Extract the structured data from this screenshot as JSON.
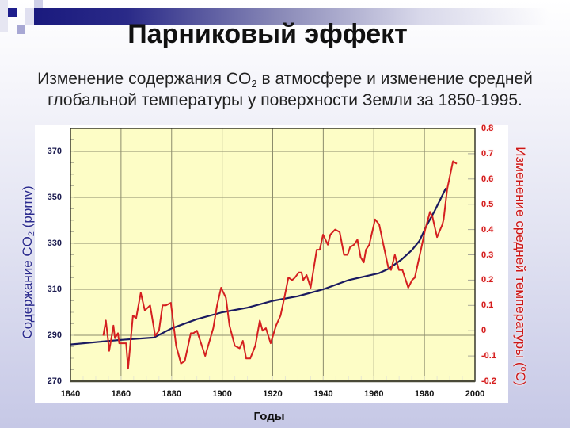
{
  "slide": {
    "title": "Парниковый эффект",
    "subtitle_line1_pre": "Изменение содержания CO",
    "subtitle_line1_sub": "2",
    "subtitle_line1_post": " в атмосфере и изменение средней",
    "subtitle_line2": "глобальной температуры у поверхности Земли за 1850-1995."
  },
  "colors": {
    "plot_background": "#fdfdc6",
    "gridline": "#8c8c6c",
    "co2_line": "#1a1a60",
    "temperature_line": "#d42020",
    "left_axis_text": "#2b2b8e",
    "right_axis_text": "#cc1616",
    "header_band": "#1a1a7e"
  },
  "chart_data": {
    "type": "line",
    "title": "Изменение содержания CO2 в атмосфере и изменение средней глобальной температуры у поверхности Земли за 1850-1995.",
    "xlabel": "Годы",
    "ylabel_left": {
      "pre": "Содержание CO",
      "sub": "2",
      "post": " (ppmv)"
    },
    "ylabel_right": {
      "pre": "Изменение средней температуры (",
      "sup": "o",
      "post": "C)"
    },
    "xlim": [
      1840,
      2000
    ],
    "ylim_left": [
      270,
      380
    ],
    "ylim_right": [
      -0.2,
      0.8
    ],
    "grid": true,
    "x_ticks": [
      "1840",
      "1860",
      "1880",
      "1900",
      "1920",
      "1940",
      "1960",
      "1980",
      "2000"
    ],
    "left_ticks": [
      "370",
      "350",
      "330",
      "310",
      "290",
      "270"
    ],
    "right_ticks": [
      "0.8",
      "0.7",
      "0.6",
      "0.5",
      "0.4",
      "0.3",
      "0.2",
      "0.1",
      "0",
      "-0.1",
      "-0.2"
    ],
    "series": [
      {
        "name": "Содержание CO2 (ppmv)",
        "axis": "left",
        "color": "#1a1a60",
        "x": [
          1840,
          1860,
          1873,
          1880,
          1890,
          1900,
          1910,
          1920,
          1930,
          1940,
          1950,
          1962,
          1966,
          1971,
          1975,
          1978,
          1981,
          1984,
          1988.5
        ],
        "y": [
          286,
          288,
          289,
          293,
          297,
          300,
          302,
          305,
          307,
          310,
          314,
          317,
          319,
          323,
          327,
          331,
          338,
          344,
          354
        ]
      },
      {
        "name": "Изменение средней температуры (°C)",
        "axis": "right",
        "color": "#d42020",
        "x": [
          1853,
          1854,
          1854.8,
          1855.3,
          1856,
          1857,
          1857.6,
          1858.8,
          1859.3,
          1861,
          1862,
          1862.8,
          1864.7,
          1866,
          1867.8,
          1869.4,
          1871.5,
          1873.5,
          1875,
          1876.4,
          1877.7,
          1879.7,
          1881.8,
          1883.7,
          1885.2,
          1887.6,
          1888.6,
          1890,
          1893.3,
          1896.5,
          1898,
          1899.6,
          1901.5,
          1902.9,
          1905,
          1906.9,
          1908.2,
          1909.5,
          1911.1,
          1913.1,
          1914.9,
          1916,
          1917.3,
          1919.2,
          1921.3,
          1923.1,
          1924.6,
          1926.2,
          1927.7,
          1928.8,
          1930.3,
          1931.4,
          1932.1,
          1933.4,
          1935,
          1937.4,
          1938.6,
          1939.9,
          1941.8,
          1942.8,
          1944.7,
          1946.5,
          1948.2,
          1949.6,
          1950.6,
          1952.2,
          1953.5,
          1954.8,
          1956,
          1956.9,
          1958.2,
          1960.5,
          1962.1,
          1964,
          1965.7,
          1966.8,
          1968.3,
          1969.9,
          1971.3,
          1973.6,
          1975.1,
          1976.2,
          1978.6,
          1980.3,
          1982.2,
          1983.2,
          1985,
          1987.1,
          1987.6,
          1989,
          1991.3,
          1992.8
        ],
        "y": [
          -0.02,
          0.04,
          -0.03,
          -0.08,
          -0.04,
          0.02,
          -0.03,
          -0.01,
          -0.05,
          -0.05,
          -0.05,
          -0.15,
          0.06,
          0.05,
          0.15,
          0.08,
          0.1,
          -0.02,
          0.0,
          0.1,
          0.1,
          0.11,
          -0.06,
          -0.13,
          -0.12,
          -0.01,
          -0.01,
          0.0,
          -0.1,
          0.01,
          0.1,
          0.17,
          0.13,
          0.02,
          -0.06,
          -0.07,
          -0.04,
          -0.11,
          -0.11,
          -0.06,
          0.04,
          0.0,
          0.01,
          -0.05,
          0.02,
          0.06,
          0.13,
          0.21,
          0.2,
          0.21,
          0.23,
          0.23,
          0.2,
          0.22,
          0.17,
          0.32,
          0.32,
          0.38,
          0.34,
          0.38,
          0.4,
          0.39,
          0.3,
          0.3,
          0.33,
          0.34,
          0.36,
          0.29,
          0.27,
          0.32,
          0.34,
          0.44,
          0.42,
          0.33,
          0.25,
          0.24,
          0.3,
          0.24,
          0.24,
          0.17,
          0.2,
          0.21,
          0.32,
          0.4,
          0.47,
          0.45,
          0.37,
          0.42,
          0.44,
          0.56,
          0.67,
          0.66
        ]
      }
    ]
  }
}
